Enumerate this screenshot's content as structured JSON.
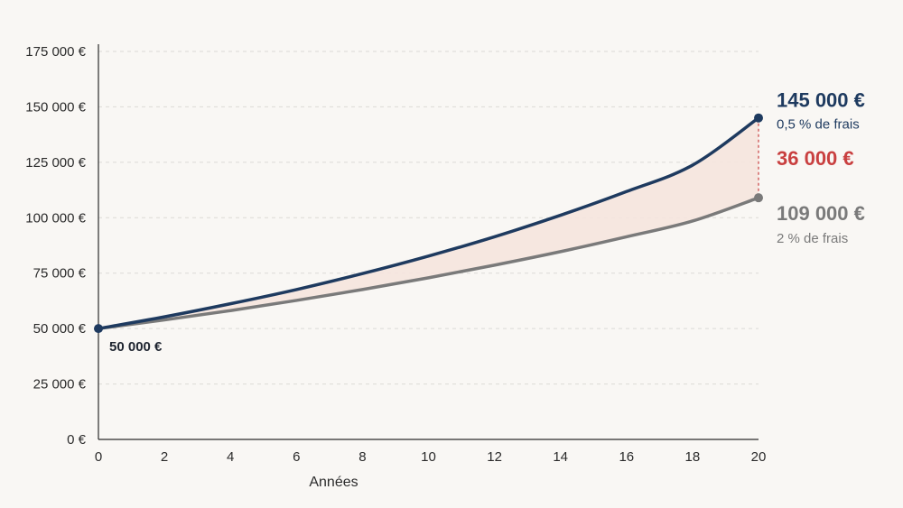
{
  "chart_data": {
    "type": "line",
    "xlabel": "Années",
    "ylabel": "",
    "xlim": [
      0,
      20
    ],
    "ylim": [
      0,
      175000
    ],
    "x_ticks": [
      "0",
      "2",
      "4",
      "6",
      "8",
      "10",
      "12",
      "14",
      "16",
      "18",
      "20"
    ],
    "y_ticks": [
      "0 €",
      "25 000 €",
      "50 000 €",
      "75 000 €",
      "100 000 €",
      "125 000 €",
      "150 000 €",
      "175 000 €"
    ],
    "grid": "horizontal dashed",
    "series": [
      {
        "name": "0,5 % de frais",
        "color": "#1e3a5f",
        "x": [
          0,
          2,
          4,
          6,
          8,
          10,
          12,
          14,
          16,
          18,
          20
        ],
        "values": [
          50000,
          55300,
          61200,
          67600,
          74800,
          82700,
          91400,
          101100,
          111800,
          123700,
          145000
        ]
      },
      {
        "name": "2 % de frais",
        "color": "#7a7a7a",
        "x": [
          0,
          2,
          4,
          6,
          8,
          10,
          12,
          14,
          16,
          18,
          20
        ],
        "values": [
          50000,
          53900,
          58100,
          62700,
          67600,
          72900,
          78600,
          84700,
          91400,
          98500,
          109000
        ]
      }
    ],
    "annotations": {
      "start_value": "50 000 €",
      "high_final_value": "145 000 €",
      "high_fee_label": "0,5 % de frais",
      "gap_value": "36 000 €",
      "low_final_value": "109 000 €",
      "low_fee_label": "2 % de frais"
    },
    "colors": {
      "high": "#1e3a5f",
      "low": "#7a7a7a",
      "gap": "#c94040",
      "fill": "#f5e4de"
    }
  }
}
